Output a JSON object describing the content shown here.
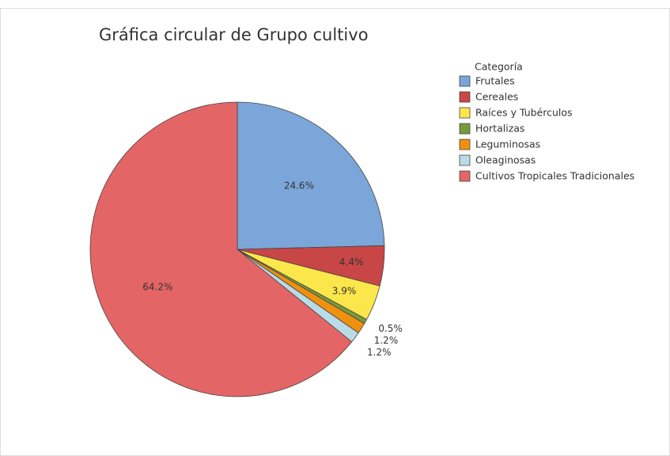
{
  "chart_data": {
    "type": "pie",
    "title": "Gráfica circular de Grupo cultivo",
    "legend_title": "Categoría",
    "categories": [
      "Frutales",
      "Cereales",
      "Raíces y Tubérculos",
      "Hortalizas",
      "Leguminosas",
      "Oleaginosas",
      "Cultivos Tropicales Tradicionales"
    ],
    "values": [
      24.6,
      4.4,
      3.9,
      0.5,
      1.2,
      1.2,
      64.2
    ],
    "value_labels": [
      "24.6%",
      "4.4%",
      "3.9%",
      "0.5%",
      "1.2%",
      "1.2%",
      "64.2%"
    ],
    "colors": [
      "#7ba6d9",
      "#c94646",
      "#fbe64b",
      "#789a3a",
      "#f0900f",
      "#b9dbe6",
      "#e46565"
    ],
    "legend": "right"
  }
}
